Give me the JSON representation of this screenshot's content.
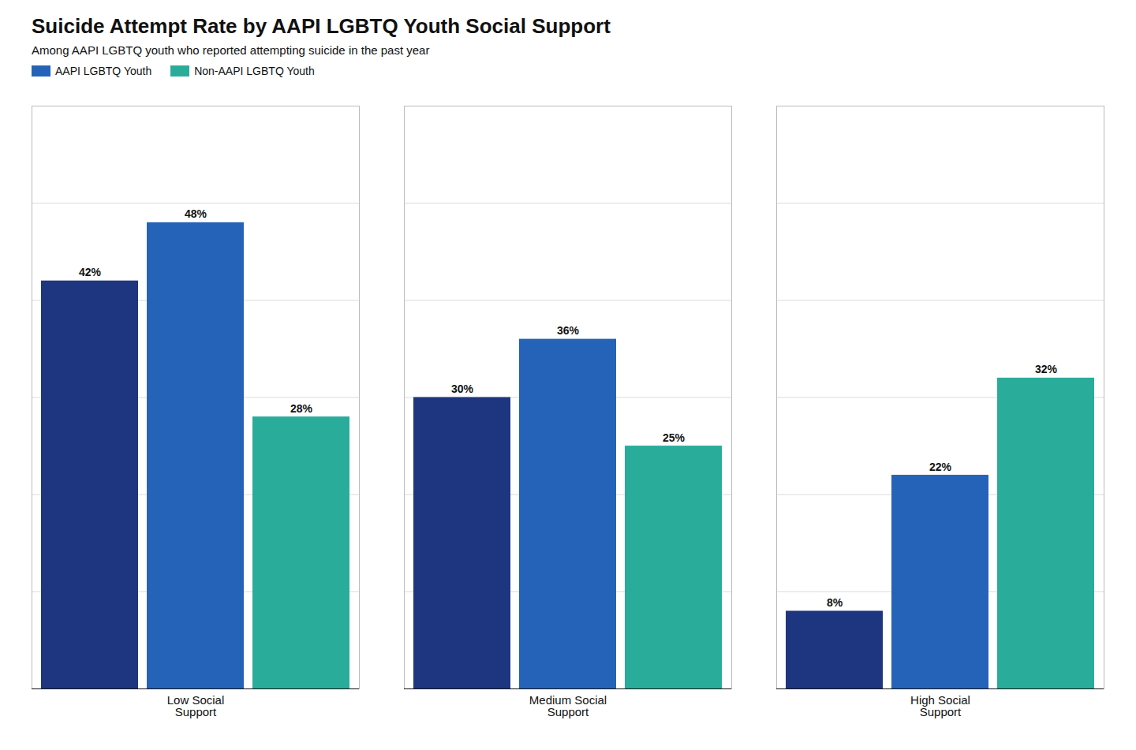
{
  "chart_data": {
    "type": "bar",
    "title": "Suicide Attempt Rate by AAPI LGBTQ Youth Social Support",
    "subtitle": "Among AAPI LGBTQ youth who reported attempting suicide in the past year",
    "categories": [
      "Low Social\nSupport",
      "Medium Social\nSupport",
      "High Social\nSupport"
    ],
    "series": [
      {
        "color": "#1e3580",
        "values": [
          42,
          30,
          8
        ],
        "value_labels": [
          "42%",
          "30%",
          "8%"
        ]
      },
      {
        "name": "AAPI LGBTQ Youth",
        "color": "#2563b8",
        "values": [
          48,
          36,
          22
        ],
        "value_labels": [
          "48%",
          "36%",
          "22%"
        ]
      },
      {
        "name": "Non-AAPI LGBTQ Youth",
        "color": "#2aac9b",
        "values": [
          28,
          25,
          32
        ],
        "value_labels": [
          "28%",
          "25%",
          "32%"
        ]
      }
    ],
    "ylim": [
      0,
      60
    ],
    "yticks": [
      10,
      20,
      30,
      40,
      50
    ],
    "grid": true,
    "data_labels": true,
    "tick_labels": "x",
    "legend": "upper left"
  }
}
